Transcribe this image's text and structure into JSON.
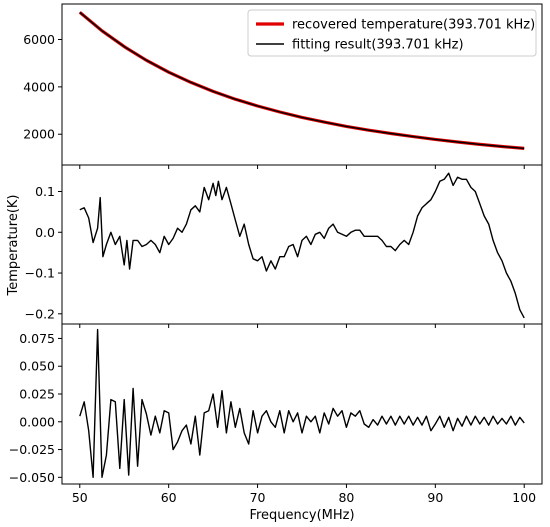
{
  "chart_data": {
    "type": "line",
    "shared_x": {
      "label": "Frequency(MHz)",
      "range": [
        48,
        102
      ],
      "ticks": [
        50,
        60,
        70,
        80,
        90,
        100
      ],
      "tick_labels": [
        "50",
        "60",
        "70",
        "80",
        "90",
        "100"
      ]
    },
    "shared_ylabel": "Temperature(K)",
    "panels": [
      {
        "ylim": [
          700,
          7500
        ],
        "yticks": [
          2000,
          4000,
          6000
        ],
        "ytick_labels": [
          "2000",
          "4000",
          "6000"
        ],
        "legend": {
          "position": "top-right",
          "entries": [
            {
              "label": "recovered temperature(393.701 kHz)",
              "color": "#e00000"
            },
            {
              "label": "fitting result(393.701 kHz)",
              "color": "#000000"
            }
          ]
        },
        "series": [
          {
            "name": "recovered temperature(393.701 kHz)",
            "color": "#e00000",
            "x": [
              50,
              52.5,
              55,
              57.5,
              60,
              62.5,
              65,
              67.5,
              70,
              72.5,
              75,
              77.5,
              80,
              82.5,
              85,
              87.5,
              90,
              92.5,
              95,
              97.5,
              100
            ],
            "y": [
              7150,
              6370,
              5700,
              5120,
              4620,
              4190,
              3810,
              3480,
              3190,
              2940,
              2710,
              2510,
              2330,
              2170,
              2030,
              1900,
              1780,
              1670,
              1570,
              1480,
              1400
            ]
          },
          {
            "name": "fitting result(393.701 kHz)",
            "color": "#000000",
            "x": [
              50,
              52.5,
              55,
              57.5,
              60,
              62.5,
              65,
              67.5,
              70,
              72.5,
              75,
              77.5,
              80,
              82.5,
              85,
              87.5,
              90,
              92.5,
              95,
              97.5,
              100
            ],
            "y": [
              7150,
              6370,
              5700,
              5120,
              4620,
              4190,
              3810,
              3480,
              3190,
              2940,
              2710,
              2510,
              2330,
              2170,
              2030,
              1900,
              1780,
              1670,
              1570,
              1480,
              1400
            ]
          }
        ]
      },
      {
        "ylim": [
          -0.225,
          0.165
        ],
        "yticks": [
          -0.2,
          -0.1,
          0.0,
          0.1
        ],
        "ytick_labels": [
          "−0.2",
          "−0.1",
          "0.0",
          "0.1"
        ],
        "series": [
          {
            "color": "#000000",
            "x": [
              50,
              50.5,
              51,
              51.5,
              52,
              52.3,
              52.6,
              53,
              53.5,
              54,
              54.5,
              55,
              55.3,
              55.6,
              56,
              56.5,
              57,
              57.5,
              58,
              58.5,
              59,
              59.5,
              60,
              60.5,
              61,
              61.5,
              62,
              62.5,
              63,
              63.5,
              64,
              64.5,
              65,
              65.3,
              65.6,
              66,
              66.5,
              67,
              67.5,
              68,
              68.5,
              69,
              69.5,
              70,
              70.5,
              71,
              71.5,
              72,
              72.5,
              73,
              73.5,
              74,
              74.5,
              75,
              75.5,
              76,
              76.5,
              77,
              77.5,
              78,
              78.5,
              79,
              79.5,
              80,
              80.5,
              81,
              81.5,
              82,
              82.5,
              83,
              83.5,
              84,
              84.5,
              85,
              85.5,
              86,
              86.5,
              87,
              87.5,
              88,
              88.5,
              89,
              89.5,
              90,
              90.5,
              91,
              91.5,
              92,
              92.5,
              93,
              93.5,
              94,
              94.5,
              95,
              95.5,
              96,
              96.5,
              97,
              97.5,
              98,
              98.5,
              99,
              99.5,
              100
            ],
            "y": [
              0.055,
              0.06,
              0.035,
              -0.025,
              0.01,
              0.085,
              -0.06,
              -0.03,
              0.0,
              -0.03,
              -0.01,
              -0.08,
              -0.02,
              -0.09,
              -0.02,
              -0.02,
              -0.035,
              -0.03,
              -0.02,
              -0.03,
              -0.05,
              -0.01,
              -0.03,
              -0.015,
              0.01,
              0.0,
              0.02,
              0.055,
              0.065,
              0.05,
              0.11,
              0.08,
              0.12,
              0.09,
              0.125,
              0.08,
              0.11,
              0.07,
              0.03,
              -0.01,
              0.02,
              -0.03,
              -0.065,
              -0.07,
              -0.06,
              -0.095,
              -0.07,
              -0.09,
              -0.06,
              -0.06,
              -0.035,
              -0.03,
              -0.06,
              -0.02,
              -0.01,
              -0.03,
              -0.005,
              0.0,
              -0.015,
              0.01,
              0.02,
              0.0,
              -0.005,
              -0.01,
              0.0,
              0.005,
              0.005,
              -0.01,
              -0.01,
              -0.01,
              -0.01,
              -0.02,
              -0.035,
              -0.035,
              -0.045,
              -0.03,
              -0.02,
              -0.03,
              0.0,
              0.04,
              0.06,
              0.07,
              0.08,
              0.1,
              0.125,
              0.13,
              0.145,
              0.115,
              0.135,
              0.13,
              0.13,
              0.11,
              0.1,
              0.07,
              0.04,
              0.02,
              -0.02,
              -0.05,
              -0.07,
              -0.1,
              -0.12,
              -0.15,
              -0.19,
              -0.21
            ]
          }
        ]
      },
      {
        "ylim": [
          -0.056,
          0.088
        ],
        "yticks": [
          -0.05,
          -0.025,
          0.0,
          0.025,
          0.05,
          0.075
        ],
        "ytick_labels": [
          "−0.050",
          "−0.025",
          "0.000",
          "0.025",
          "0.050",
          "0.075"
        ],
        "series": [
          {
            "color": "#000000",
            "x": [
              50,
              50.5,
              51,
              51.5,
              52,
              52.5,
              53,
              53.5,
              54,
              54.5,
              55,
              55.5,
              56,
              56.5,
              57,
              57.5,
              58,
              58.5,
              59,
              59.5,
              60,
              60.5,
              61,
              61.5,
              62,
              62.5,
              63,
              63.5,
              64,
              64.5,
              65,
              65.5,
              66,
              66.5,
              67,
              67.5,
              68,
              68.5,
              69,
              69.5,
              70,
              70.5,
              71,
              71.5,
              72,
              72.5,
              73,
              73.5,
              74,
              74.5,
              75,
              75.5,
              76,
              76.5,
              77,
              77.5,
              78,
              78.5,
              79,
              79.5,
              80,
              80.5,
              81,
              81.5,
              82,
              82.5,
              83,
              83.5,
              84,
              84.5,
              85,
              85.5,
              86,
              86.5,
              87,
              87.5,
              88,
              88.5,
              89,
              89.5,
              90,
              90.5,
              91,
              91.5,
              92,
              92.5,
              93,
              93.5,
              94,
              94.5,
              95,
              95.5,
              96,
              96.5,
              97,
              97.5,
              98,
              98.5,
              99,
              99.5,
              100
            ],
            "y": [
              0.005,
              0.018,
              -0.008,
              -0.05,
              0.083,
              -0.05,
              -0.03,
              0.02,
              0.018,
              -0.042,
              0.02,
              -0.048,
              0.03,
              -0.04,
              0.02,
              0.007,
              -0.012,
              0.005,
              -0.01,
              0.01,
              0.008,
              -0.025,
              -0.018,
              -0.008,
              -0.003,
              -0.02,
              0.005,
              -0.03,
              0.008,
              0.01,
              0.025,
              -0.005,
              0.028,
              -0.01,
              0.018,
              -0.005,
              0.012,
              -0.01,
              -0.02,
              0.01,
              -0.01,
              0.005,
              0.01,
              0.0,
              -0.005,
              0.01,
              -0.01,
              0.01,
              0.0,
              0.008,
              -0.01,
              0.005,
              0.0,
              0.005,
              -0.01,
              0.008,
              -0.002,
              0.012,
              0.005,
              0.01,
              -0.005,
              0.008,
              0.005,
              0.01,
              -0.002,
              -0.005,
              0.002,
              -0.003,
              0.005,
              -0.002,
              0.005,
              -0.003,
              0.005,
              -0.002,
              0.005,
              -0.003,
              0.004,
              -0.003,
              0.005,
              -0.008,
              -0.002,
              0.005,
              -0.005,
              0.004,
              -0.008,
              0.003,
              -0.004,
              0.005,
              -0.003,
              0.005,
              -0.002,
              0.004,
              -0.003,
              0.005,
              -0.002,
              0.003,
              -0.002,
              0.005,
              -0.003,
              0.004,
              -0.001
            ]
          }
        ]
      }
    ]
  }
}
